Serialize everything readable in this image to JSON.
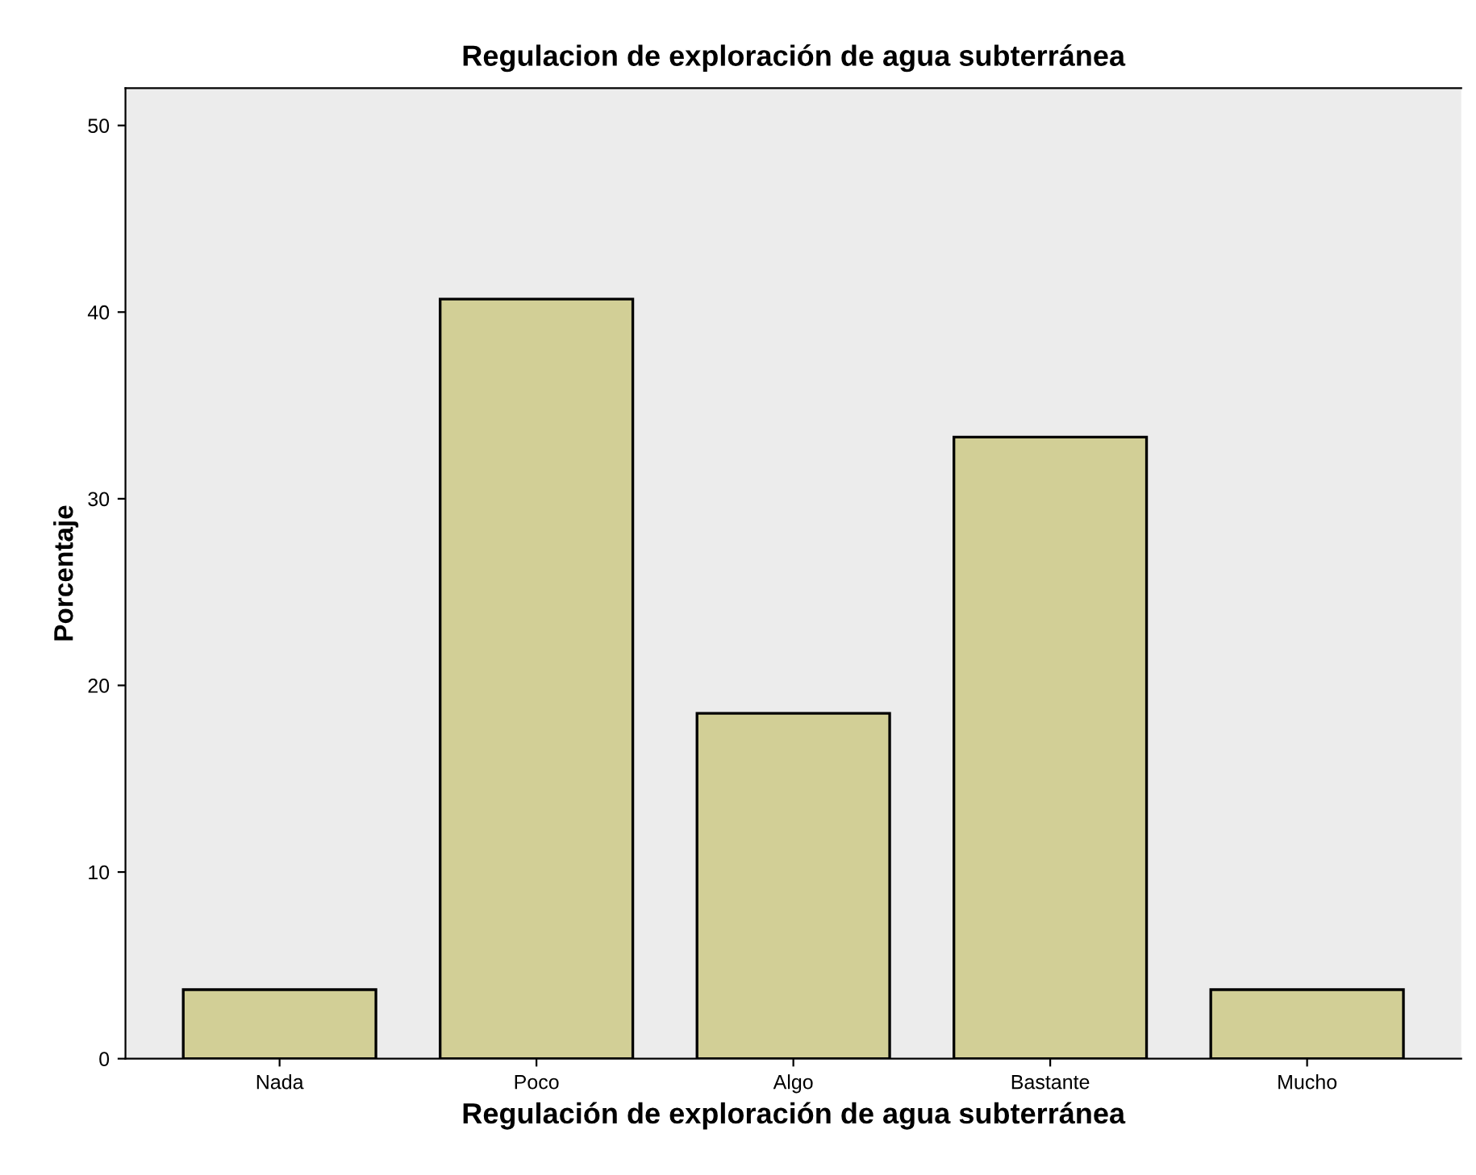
{
  "chart_data": {
    "type": "bar",
    "title": "Regulacion de exploración de agua subterránea",
    "xlabel": "Regulación de exploración de agua subterránea",
    "ylabel": "Porcentaje",
    "categories": [
      "Nada",
      "Poco",
      "Algo",
      "Bastante",
      "Mucho"
    ],
    "values": [
      3.7,
      40.7,
      18.5,
      33.3,
      3.7
    ],
    "color": "#d2cf96",
    "ylim": [
      0,
      52
    ],
    "yticks": [
      0,
      10,
      20,
      30,
      40,
      50
    ],
    "grid": false,
    "legend": false
  }
}
